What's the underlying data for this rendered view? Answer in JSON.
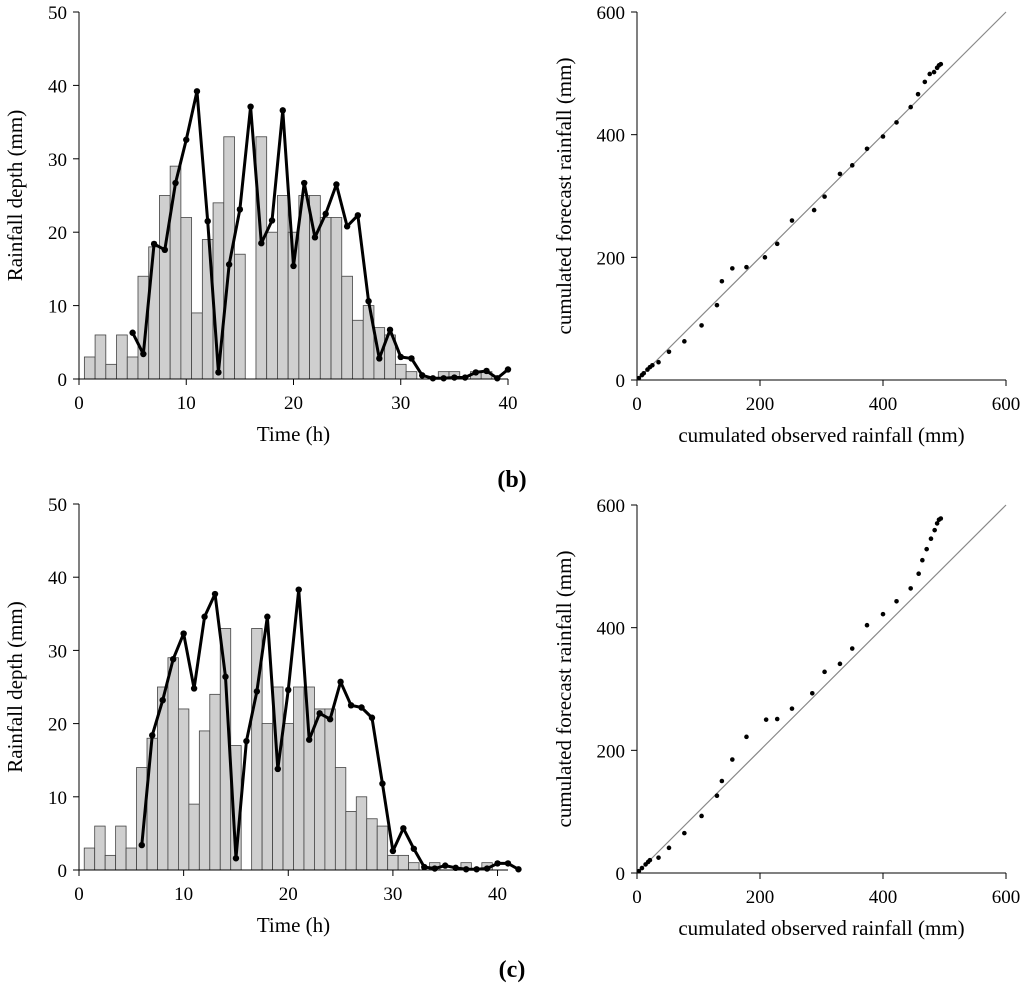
{
  "panel_labels": [
    "(b)",
    "(c)"
  ],
  "chart_data": [
    {
      "id": "b-left",
      "type": "bar",
      "xlabel": "Time (h)",
      "ylabel": "Rainfall depth (mm)",
      "xlim": [
        0,
        40
      ],
      "ylim": [
        0,
        50
      ],
      "xticks": [
        0,
        10,
        20,
        30,
        40
      ],
      "yticks": [
        0,
        10,
        20,
        30,
        40,
        50
      ],
      "bars": [
        3,
        6,
        2,
        6,
        3,
        14,
        18,
        25,
        29,
        22,
        9,
        19,
        24,
        33,
        17,
        0,
        33,
        20,
        25,
        20,
        25,
        25,
        22,
        22,
        14,
        8,
        10,
        7,
        6,
        2,
        1,
        0,
        0,
        1,
        1,
        0,
        1,
        1,
        0
      ],
      "line": [
        [
          5,
          6.3
        ],
        [
          6,
          3.4
        ],
        [
          7,
          18.4
        ],
        [
          8,
          17.6
        ],
        [
          9,
          26.7
        ],
        [
          10,
          32.6
        ],
        [
          11,
          39.2
        ],
        [
          12,
          21.5
        ],
        [
          13,
          0.9
        ],
        [
          14,
          15.6
        ],
        [
          15,
          23.1
        ],
        [
          16,
          37.1
        ],
        [
          17,
          18.5
        ],
        [
          18,
          21.6
        ],
        [
          19,
          36.6
        ],
        [
          20,
          15.4
        ],
        [
          21,
          26.7
        ],
        [
          22,
          19.3
        ],
        [
          23,
          22.5
        ],
        [
          24,
          26.5
        ],
        [
          25,
          20.8
        ],
        [
          26,
          22.3
        ],
        [
          27,
          10.6
        ],
        [
          28,
          2.8
        ],
        [
          29,
          6.7
        ],
        [
          30,
          3.0
        ],
        [
          31,
          2.8
        ],
        [
          32,
          0.5
        ],
        [
          33,
          0.1
        ],
        [
          34,
          0.1
        ],
        [
          35,
          0.2
        ],
        [
          36,
          0.2
        ],
        [
          37,
          0.9
        ],
        [
          38,
          1.1
        ],
        [
          39,
          0.1
        ],
        [
          40,
          1.3
        ]
      ]
    },
    {
      "id": "b-right",
      "type": "scatter",
      "xlabel": "cumulated observed rainfall (mm)",
      "ylabel": "cumulated forecast rainfall (mm)",
      "xlim": [
        0,
        600
      ],
      "ylim": [
        0,
        600
      ],
      "xticks": [
        0,
        200,
        400,
        600
      ],
      "yticks": [
        0,
        200,
        400,
        600
      ],
      "diagonal": true,
      "points": [
        [
          3,
          3
        ],
        [
          8,
          8
        ],
        [
          11,
          11
        ],
        [
          17,
          17
        ],
        [
          21,
          21
        ],
        [
          25,
          24
        ],
        [
          35,
          29
        ],
        [
          52,
          46
        ],
        [
          77,
          63
        ],
        [
          105,
          89
        ],
        [
          130,
          122
        ],
        [
          138,
          161
        ],
        [
          155,
          182
        ],
        [
          178,
          184
        ],
        [
          208,
          200
        ],
        [
          228,
          222
        ],
        [
          252,
          260
        ],
        [
          288,
          277
        ],
        [
          305,
          299
        ],
        [
          330,
          336
        ],
        [
          350,
          350
        ],
        [
          374,
          377
        ],
        [
          400,
          397
        ],
        [
          422,
          420
        ],
        [
          445,
          445
        ],
        [
          457,
          466
        ],
        [
          468,
          486
        ],
        [
          476,
          499
        ],
        [
          483,
          502
        ],
        [
          488,
          509
        ],
        [
          491,
          513
        ],
        [
          494,
          515
        ]
      ]
    },
    {
      "id": "c-left",
      "type": "bar",
      "xlabel": "Time (h)",
      "ylabel": "Rainfall depth (mm)",
      "xlim": [
        0,
        41
      ],
      "ylim": [
        0,
        50
      ],
      "xticks": [
        0,
        10,
        20,
        30,
        40
      ],
      "yticks": [
        0,
        10,
        20,
        30,
        40,
        50
      ],
      "bars": [
        3,
        6,
        2,
        6,
        3,
        14,
        18,
        25,
        29,
        22,
        9,
        19,
        24,
        33,
        17,
        0,
        33,
        20,
        25,
        20,
        25,
        25,
        22,
        22,
        14,
        8,
        10,
        7,
        6,
        2,
        2,
        1,
        0,
        1,
        0,
        0,
        1,
        0,
        1,
        0
      ],
      "line": [
        [
          6,
          3.4
        ],
        [
          7,
          18.4
        ],
        [
          8,
          23.2
        ],
        [
          9,
          28.8
        ],
        [
          10,
          32.3
        ],
        [
          11,
          24.8
        ],
        [
          12,
          34.6
        ],
        [
          13,
          37.7
        ],
        [
          14,
          26.4
        ],
        [
          15,
          1.6
        ],
        [
          16,
          17.6
        ],
        [
          17,
          24.4
        ],
        [
          18,
          34.6
        ],
        [
          19,
          13.8
        ],
        [
          20,
          24.6
        ],
        [
          21,
          38.3
        ],
        [
          22,
          17.8
        ],
        [
          23,
          21.4
        ],
        [
          24,
          20.6
        ],
        [
          25,
          25.7
        ],
        [
          26,
          22.5
        ],
        [
          27,
          22.2
        ],
        [
          28,
          20.8
        ],
        [
          29,
          11.8
        ],
        [
          30,
          2.6
        ],
        [
          31,
          5.7
        ],
        [
          32,
          2.9
        ],
        [
          33,
          0.4
        ],
        [
          34,
          0.2
        ],
        [
          35,
          0.6
        ],
        [
          36,
          0.3
        ],
        [
          37,
          0.1
        ],
        [
          38,
          0.1
        ],
        [
          39,
          0.2
        ],
        [
          40,
          0.9
        ],
        [
          41,
          0.9
        ],
        [
          42,
          0.1
        ]
      ]
    },
    {
      "id": "c-right",
      "type": "scatter",
      "xlabel": "cumulated observed rainfall (mm)",
      "ylabel": "cumulated forecast rainfall (mm)",
      "xlim": [
        0,
        600
      ],
      "ylim": [
        0,
        600
      ],
      "xticks": [
        0,
        200,
        400,
        600
      ],
      "yticks": [
        0,
        200,
        400,
        600
      ],
      "diagonal": true,
      "points": [
        [
          3,
          3
        ],
        [
          8,
          8
        ],
        [
          14,
          14
        ],
        [
          18,
          18
        ],
        [
          21,
          21
        ],
        [
          35,
          25
        ],
        [
          52,
          41
        ],
        [
          77,
          65
        ],
        [
          105,
          93
        ],
        [
          130,
          126
        ],
        [
          138,
          150
        ],
        [
          155,
          185
        ],
        [
          178,
          222
        ],
        [
          210,
          250
        ],
        [
          228,
          251
        ],
        [
          252,
          268
        ],
        [
          285,
          293
        ],
        [
          305,
          328
        ],
        [
          330,
          341
        ],
        [
          350,
          366
        ],
        [
          374,
          404
        ],
        [
          400,
          422
        ],
        [
          422,
          443
        ],
        [
          445,
          464
        ],
        [
          458,
          488
        ],
        [
          464,
          510
        ],
        [
          471,
          528
        ],
        [
          478,
          545
        ],
        [
          484,
          559
        ],
        [
          488,
          570
        ],
        [
          491,
          576
        ],
        [
          494,
          578
        ]
      ]
    }
  ]
}
